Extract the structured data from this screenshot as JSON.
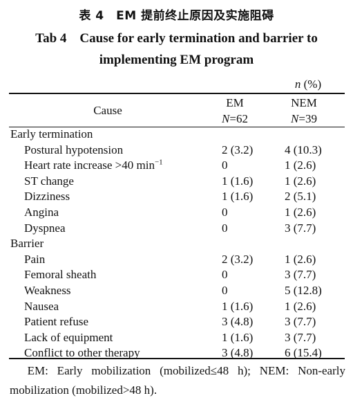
{
  "title_cn": "表 4　EM 提前终止原因及实施阻碍",
  "title_en_line1": "Tab 4　Cause for early termination and barrier to",
  "title_en_line2": "implementing EM program",
  "unit_label": "n (%)",
  "header": {
    "cause": "Cause",
    "em_label": "EM",
    "em_n_sym": "N",
    "em_n_val": "=62",
    "nem_label": "NEM",
    "nem_n_sym": "N",
    "nem_n_val": "=39"
  },
  "rows": [
    {
      "label": "Early termination",
      "em": "",
      "nem": "",
      "section": true
    },
    {
      "label": "Postural hypotension",
      "em": "2 (3.2)",
      "nem": "4 (10.3)"
    },
    {
      "label": "Heart rate increase >40 min",
      "label_sup": "−1",
      "em": "0",
      "nem": "1 (2.6)"
    },
    {
      "label": "ST change",
      "em": "1 (1.6)",
      "nem": "1 (2.6)"
    },
    {
      "label": "Dizziness",
      "em": "1 (1.6)",
      "nem": "2 (5.1)"
    },
    {
      "label": "Angina",
      "em": "0",
      "nem": "1 (2.6)"
    },
    {
      "label": "Dyspnea",
      "em": "0",
      "nem": "3 (7.7)"
    },
    {
      "label": "Barrier",
      "em": "",
      "nem": "",
      "section": true
    },
    {
      "label": "Pain",
      "em": "2 (3.2)",
      "nem": "1 (2.6)"
    },
    {
      "label": "Femoral sheath",
      "em": "0",
      "nem": "3 (7.7)"
    },
    {
      "label": "Weakness",
      "em": "0",
      "nem": "5 (12.8)"
    },
    {
      "label": "Nausea",
      "em": "1 (1.6)",
      "nem": "1 (2.6)"
    },
    {
      "label": "Patient refuse",
      "em": "3 (4.8)",
      "nem": "3 (7.7)"
    },
    {
      "label": "Lack of equipment",
      "em": "1 (1.6)",
      "nem": "3 (7.7)"
    },
    {
      "label": "Conflict to other therapy",
      "em": "3 (4.8)",
      "nem": "6 (15.4)"
    }
  ],
  "footnote": "　EM: Early mobilization (mobilized≤48 h); NEM: Non-early mobilization (mobilized>48 h)."
}
